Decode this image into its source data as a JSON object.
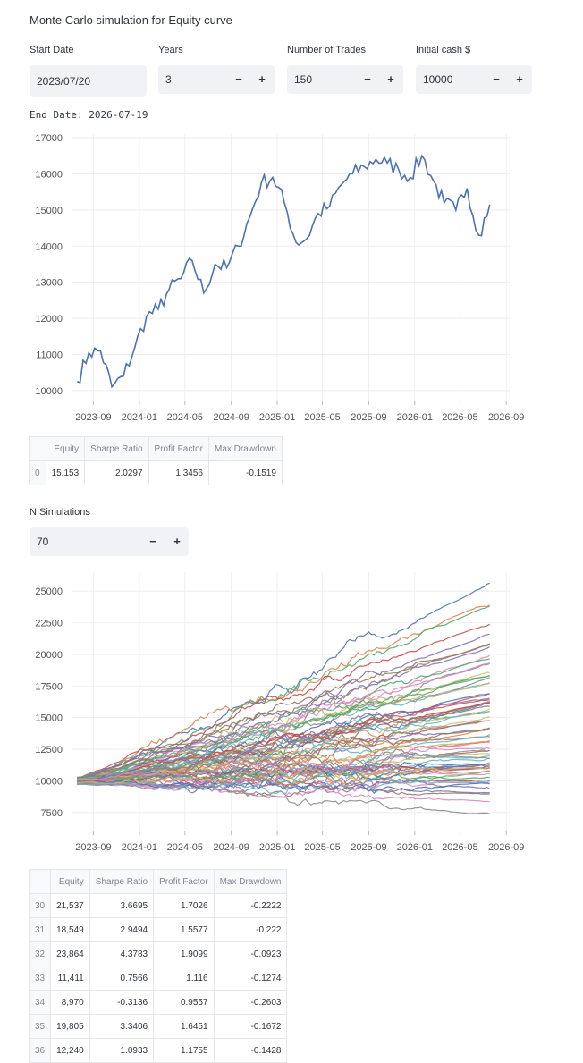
{
  "page": {
    "title": "Monte Carlo simulation for Equity curve",
    "end_date_text": "End Date: 2026-07-19"
  },
  "inputs": {
    "start_date": {
      "label": "Start Date",
      "value": "2023/07/20"
    },
    "years": {
      "label": "Years",
      "value": "3",
      "minus": "−",
      "plus": "+"
    },
    "num_trades": {
      "label": "Number of Trades",
      "value": "150",
      "minus": "−",
      "plus": "+"
    },
    "initial_cash": {
      "label": "Initial cash $",
      "value": "10000",
      "minus": "−",
      "plus": "+"
    },
    "n_simulations": {
      "label": "N Simulations",
      "value": "70",
      "minus": "−",
      "plus": "+"
    }
  },
  "table1": {
    "columns": [
      "",
      "Equity",
      "Sharpe Ratio",
      "Profit Factor",
      "Max Drawdown"
    ],
    "rows": [
      [
        "0",
        "15,153",
        "2.0297",
        "1.3456",
        "-0.1519"
      ]
    ]
  },
  "table2": {
    "columns": [
      "",
      "Equity",
      "Sharpe Ratio",
      "Profit Factor",
      "Max Drawdown"
    ],
    "rows": [
      [
        "30",
        "21,537",
        "3.6695",
        "1.7026",
        "-0.2222"
      ],
      [
        "31",
        "18,549",
        "2.9494",
        "1.5577",
        "-0.222"
      ],
      [
        "32",
        "23,864",
        "4.3783",
        "1.9099",
        "-0.0923"
      ],
      [
        "33",
        "11,411",
        "0.7566",
        "1.116",
        "-0.1274"
      ],
      [
        "34",
        "8,970",
        "-0.3136",
        "0.9557",
        "-0.2603"
      ],
      [
        "35",
        "19,805",
        "3.3406",
        "1.6451",
        "-0.1672"
      ],
      [
        "36",
        "12,240",
        "1.0933",
        "1.1755",
        "-0.1428"
      ]
    ]
  },
  "colors": {
    "line": "#4c72b0",
    "grid": "#eeeeee",
    "input_bg": "#f0f2f6",
    "palette": [
      "#4c72b0",
      "#dd8452",
      "#55a868",
      "#c44e52",
      "#8172b3",
      "#937860",
      "#da8bc3",
      "#8c8c8c",
      "#ccb974",
      "#64b5cd"
    ]
  },
  "chart_data": [
    {
      "type": "line",
      "title": "",
      "xlabel": "",
      "ylabel": "",
      "x_ticks": [
        "2023-09",
        "2024-01",
        "2024-05",
        "2024-09",
        "2025-01",
        "2025-05",
        "2025-09",
        "2026-01",
        "2026-05",
        "2026-09"
      ],
      "y_ticks": [
        "10000",
        "11000",
        "12000",
        "13000",
        "14000",
        "15000",
        "16000",
        "17000"
      ],
      "ylim": [
        9700,
        17100
      ],
      "xlim": [
        "2023-07-05",
        "2026-09-10"
      ],
      "grid": true,
      "series": [
        {
          "x": [
            "2023-07-20",
            "2023-08-20",
            "2023-09-20",
            "2023-10-20",
            "2023-11-20",
            "2023-12-20",
            "2024-01-20",
            "2024-02-20",
            "2024-03-20",
            "2024-04-20",
            "2024-05-20",
            "2024-06-20",
            "2024-07-20",
            "2024-08-20",
            "2024-09-20",
            "2024-10-20",
            "2024-11-20",
            "2024-12-20",
            "2025-01-20",
            "2025-02-20",
            "2025-03-20",
            "2025-04-20",
            "2025-05-20",
            "2025-06-20",
            "2025-07-20",
            "2025-08-20",
            "2025-09-20",
            "2025-10-20",
            "2025-11-20",
            "2025-12-20",
            "2026-01-20",
            "2026-02-20",
            "2026-03-20",
            "2026-04-20",
            "2026-05-20",
            "2026-06-20",
            "2026-07-19"
          ],
          "values": [
            10250,
            11050,
            11100,
            10100,
            10400,
            11200,
            12050,
            12250,
            12800,
            13100,
            13600,
            12700,
            13500,
            13400,
            14000,
            14800,
            15750,
            15900,
            15200,
            14100,
            14200,
            14900,
            15100,
            15700,
            16000,
            16200,
            16400,
            16300,
            16100,
            15900,
            16500,
            15800,
            15200,
            15000,
            15600,
            14300,
            15153
          ]
        }
      ]
    },
    {
      "type": "line",
      "title": "",
      "xlabel": "",
      "ylabel": "",
      "x_ticks": [
        "2023-09",
        "2024-01",
        "2024-05",
        "2024-09",
        "2025-01",
        "2025-05",
        "2025-09",
        "2026-01",
        "2026-05",
        "2026-09"
      ],
      "y_ticks": [
        "7500",
        "10000",
        "12500",
        "15000",
        "17500",
        "20000",
        "22500",
        "25000"
      ],
      "ylim": [
        6000,
        26500
      ],
      "xlim": [
        "2023-07-05",
        "2026-09-10"
      ],
      "grid": true,
      "n_series": 70,
      "series_final_equity_sample": [
        25500,
        24200,
        23864,
        22500,
        21537,
        20800,
        19805,
        19200,
        18549,
        17800,
        17000,
        16200,
        15500,
        14800,
        14200,
        13600,
        13000,
        12500,
        12240,
        11800,
        11411,
        11000,
        10500,
        10000,
        9500,
        8970,
        8400,
        7300
      ]
    }
  ]
}
